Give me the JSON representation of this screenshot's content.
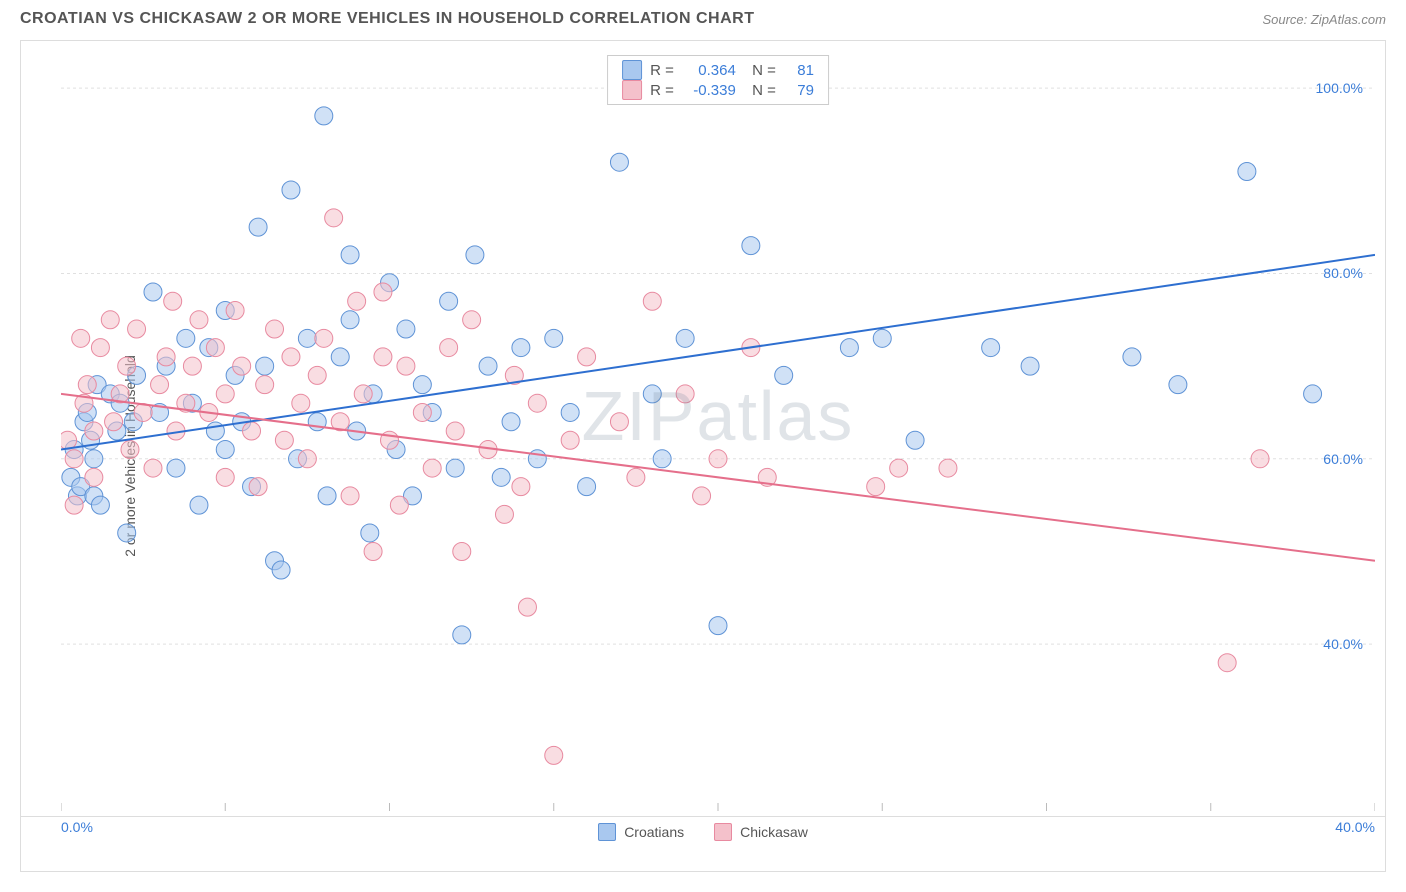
{
  "title": "CROATIAN VS CHICKASAW 2 OR MORE VEHICLES IN HOUSEHOLD CORRELATION CHART",
  "source_label": "Source: ",
  "source_name": "ZipAtlas.com",
  "ylabel": "2 or more Vehicles in Household",
  "watermark": "ZIPatlas",
  "chart": {
    "type": "scatter",
    "background_color": "#ffffff",
    "grid_color": "#e0e0e0",
    "border_color": "#dddddd",
    "xlim": [
      0,
      40
    ],
    "ylim": [
      22,
      104
    ],
    "x_ticks": [
      0,
      5,
      10,
      15,
      20,
      25,
      30,
      35,
      40
    ],
    "x_tick_labels": {
      "0": "0.0%",
      "40": "40.0%"
    },
    "y_ticks": [
      40,
      60,
      80,
      100
    ],
    "y_tick_labels": {
      "40": "40.0%",
      "60": "60.0%",
      "80": "80.0%",
      "100": "100.0%"
    },
    "marker_radius": 9,
    "marker_opacity": 0.55,
    "line_width": 2,
    "series": [
      {
        "name": "Croatians",
        "fill": "#a9c8ef",
        "stroke": "#5f93d6",
        "line_color": "#2e6fd0",
        "R": "0.364",
        "N": "81",
        "trend": {
          "x1": 0,
          "y1": 61,
          "x2": 40,
          "y2": 82
        },
        "points": [
          [
            0.3,
            58
          ],
          [
            0.4,
            61
          ],
          [
            0.5,
            56
          ],
          [
            0.6,
            57
          ],
          [
            0.7,
            64
          ],
          [
            0.8,
            65
          ],
          [
            0.9,
            62
          ],
          [
            1.0,
            60
          ],
          [
            1.0,
            56
          ],
          [
            1.1,
            68
          ],
          [
            1.2,
            55
          ],
          [
            1.5,
            67
          ],
          [
            1.7,
            63
          ],
          [
            1.8,
            66
          ],
          [
            2.0,
            52
          ],
          [
            2.2,
            64
          ],
          [
            2.3,
            69
          ],
          [
            2.8,
            78
          ],
          [
            3.0,
            65
          ],
          [
            3.2,
            70
          ],
          [
            3.5,
            59
          ],
          [
            3.8,
            73
          ],
          [
            4.0,
            66
          ],
          [
            4.2,
            55
          ],
          [
            4.5,
            72
          ],
          [
            4.7,
            63
          ],
          [
            5.0,
            76
          ],
          [
            5.0,
            61
          ],
          [
            5.3,
            69
          ],
          [
            5.5,
            64
          ],
          [
            5.8,
            57
          ],
          [
            6.0,
            85
          ],
          [
            6.2,
            70
          ],
          [
            6.5,
            49
          ],
          [
            6.7,
            48
          ],
          [
            7.0,
            89
          ],
          [
            7.2,
            60
          ],
          [
            7.5,
            73
          ],
          [
            7.8,
            64
          ],
          [
            8.0,
            97
          ],
          [
            8.1,
            56
          ],
          [
            8.5,
            71
          ],
          [
            8.8,
            75
          ],
          [
            8.8,
            82
          ],
          [
            9.0,
            63
          ],
          [
            9.4,
            52
          ],
          [
            9.5,
            67
          ],
          [
            10.0,
            79
          ],
          [
            10.2,
            61
          ],
          [
            10.5,
            74
          ],
          [
            10.7,
            56
          ],
          [
            11.0,
            68
          ],
          [
            11.3,
            65
          ],
          [
            11.8,
            77
          ],
          [
            12.0,
            59
          ],
          [
            12.2,
            41
          ],
          [
            12.6,
            82
          ],
          [
            13.0,
            70
          ],
          [
            13.4,
            58
          ],
          [
            13.7,
            64
          ],
          [
            14.0,
            72
          ],
          [
            14.5,
            60
          ],
          [
            15.0,
            73
          ],
          [
            15.5,
            65
          ],
          [
            16.0,
            57
          ],
          [
            17.0,
            92
          ],
          [
            18.0,
            67
          ],
          [
            18.3,
            60
          ],
          [
            19.0,
            73
          ],
          [
            20.0,
            42
          ],
          [
            21.0,
            83
          ],
          [
            22.0,
            69
          ],
          [
            24.0,
            72
          ],
          [
            25.0,
            73
          ],
          [
            26.0,
            62
          ],
          [
            28.3,
            72
          ],
          [
            29.5,
            70
          ],
          [
            32.6,
            71
          ],
          [
            34.0,
            68
          ],
          [
            36.1,
            91
          ],
          [
            38.1,
            67
          ]
        ]
      },
      {
        "name": "Chickasaw",
        "fill": "#f4c1cb",
        "stroke": "#e88aa0",
        "line_color": "#e56f8b",
        "R": "-0.339",
        "N": "79",
        "trend": {
          "x1": 0,
          "y1": 67,
          "x2": 40,
          "y2": 49
        },
        "points": [
          [
            0.2,
            62
          ],
          [
            0.4,
            60
          ],
          [
            0.4,
            55
          ],
          [
            0.6,
            73
          ],
          [
            0.7,
            66
          ],
          [
            0.8,
            68
          ],
          [
            1.0,
            58
          ],
          [
            1.0,
            63
          ],
          [
            1.2,
            72
          ],
          [
            1.5,
            75
          ],
          [
            1.6,
            64
          ],
          [
            1.8,
            67
          ],
          [
            2.0,
            70
          ],
          [
            2.1,
            61
          ],
          [
            2.3,
            74
          ],
          [
            2.5,
            65
          ],
          [
            2.8,
            59
          ],
          [
            3.0,
            68
          ],
          [
            3.2,
            71
          ],
          [
            3.4,
            77
          ],
          [
            3.5,
            63
          ],
          [
            3.8,
            66
          ],
          [
            4.0,
            70
          ],
          [
            4.2,
            75
          ],
          [
            4.5,
            65
          ],
          [
            4.7,
            72
          ],
          [
            5.0,
            67
          ],
          [
            5.0,
            58
          ],
          [
            5.3,
            76
          ],
          [
            5.5,
            70
          ],
          [
            5.8,
            63
          ],
          [
            6.0,
            57
          ],
          [
            6.2,
            68
          ],
          [
            6.5,
            74
          ],
          [
            6.8,
            62
          ],
          [
            7.0,
            71
          ],
          [
            7.3,
            66
          ],
          [
            7.5,
            60
          ],
          [
            7.8,
            69
          ],
          [
            8.0,
            73
          ],
          [
            8.3,
            86
          ],
          [
            8.5,
            64
          ],
          [
            8.8,
            56
          ],
          [
            9.0,
            77
          ],
          [
            9.2,
            67
          ],
          [
            9.5,
            50
          ],
          [
            9.8,
            71
          ],
          [
            9.8,
            78
          ],
          [
            10.0,
            62
          ],
          [
            10.3,
            55
          ],
          [
            10.5,
            70
          ],
          [
            11.0,
            65
          ],
          [
            11.3,
            59
          ],
          [
            11.8,
            72
          ],
          [
            12.0,
            63
          ],
          [
            12.2,
            50
          ],
          [
            12.5,
            75
          ],
          [
            13.0,
            61
          ],
          [
            13.5,
            54
          ],
          [
            13.8,
            69
          ],
          [
            14.0,
            57
          ],
          [
            14.2,
            44
          ],
          [
            14.5,
            66
          ],
          [
            15.0,
            28
          ],
          [
            15.5,
            62
          ],
          [
            16.0,
            71
          ],
          [
            17.0,
            64
          ],
          [
            17.5,
            58
          ],
          [
            18.0,
            77
          ],
          [
            19.0,
            67
          ],
          [
            19.5,
            56
          ],
          [
            20.0,
            60
          ],
          [
            21.0,
            72
          ],
          [
            21.5,
            58
          ],
          [
            24.8,
            57
          ],
          [
            25.5,
            59
          ],
          [
            27.0,
            59
          ],
          [
            35.5,
            38
          ],
          [
            36.5,
            60
          ]
        ]
      }
    ]
  },
  "legend": {
    "items": [
      "Croatians",
      "Chickasaw"
    ]
  },
  "colors": {
    "tick_label": "#3b7dd8",
    "text": "#555555"
  }
}
